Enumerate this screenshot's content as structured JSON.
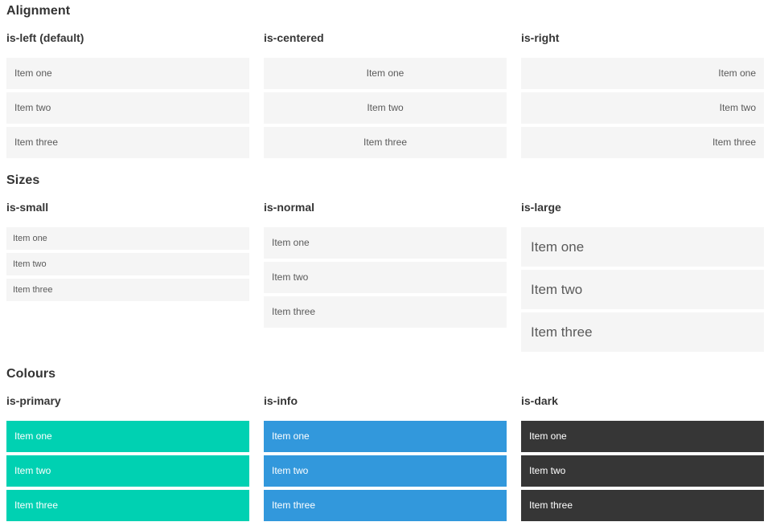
{
  "colors": {
    "primary": "#00d1b2",
    "info": "#3298dc",
    "dark": "#363636",
    "item_background": "#f5f5f5"
  },
  "sections": [
    {
      "title": "Alignment",
      "columns": [
        {
          "subtitle": "is-left (default)",
          "items": [
            "Item one",
            "Item two",
            "Item three"
          ]
        },
        {
          "subtitle": "is-centered",
          "items": [
            "Item one",
            "Item two",
            "Item three"
          ]
        },
        {
          "subtitle": "is-right",
          "items": [
            "Item one",
            "Item two",
            "Item three"
          ]
        }
      ]
    },
    {
      "title": "Sizes",
      "columns": [
        {
          "subtitle": "is-small",
          "items": [
            "Item one",
            "Item two",
            "Item three"
          ]
        },
        {
          "subtitle": "is-normal",
          "items": [
            "Item one",
            "Item two",
            "Item three"
          ]
        },
        {
          "subtitle": "is-large",
          "items": [
            "Item one",
            "Item two",
            "Item three"
          ]
        }
      ]
    },
    {
      "title": "Colours",
      "columns": [
        {
          "subtitle": "is-primary",
          "items": [
            "Item one",
            "Item two",
            "Item three"
          ]
        },
        {
          "subtitle": "is-info",
          "items": [
            "Item one",
            "Item two",
            "Item three"
          ]
        },
        {
          "subtitle": "is-dark",
          "items": [
            "Item one",
            "Item two",
            "Item three"
          ]
        }
      ]
    }
  ]
}
